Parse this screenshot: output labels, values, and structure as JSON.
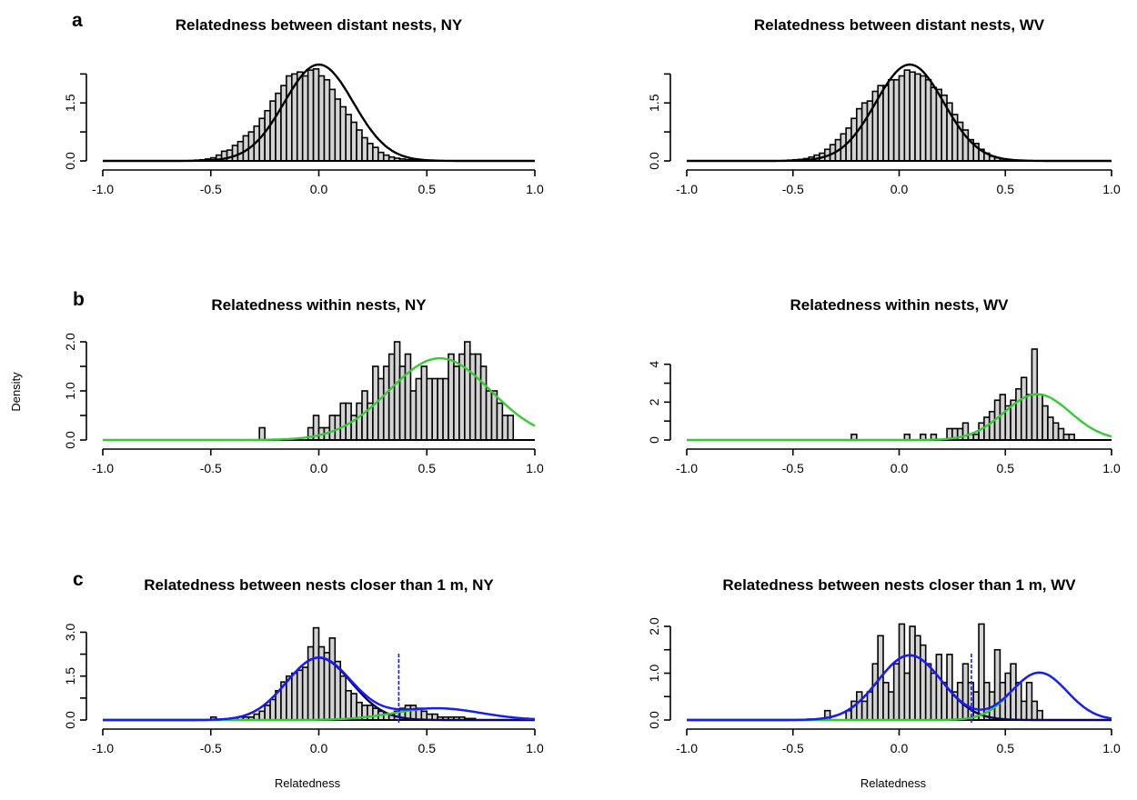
{
  "figure": {
    "ylabel": "Density",
    "xlabel": "Relatedness",
    "panel_labels": [
      "a",
      "b",
      "c"
    ]
  },
  "colors": {
    "bar_fill": "#d3d3d3",
    "bar_edge": "#000000",
    "black_curve": "#000000",
    "green_curve": "#33cc33",
    "blue_curve": "#1a1aff",
    "navy_curve": "#0a0a50",
    "threshold_line": "#1a1aff"
  },
  "chart_data": [
    {
      "type": "histogram",
      "title": "Relatedness between distant nests, NY",
      "xlim": [
        -1.0,
        1.0
      ],
      "ylim": [
        0,
        2.4
      ],
      "x_ticks": [
        "-1.0",
        "-0.5",
        "0.0",
        "0.5",
        "1.0"
      ],
      "y_ticks": [
        "0.0",
        "1.5"
      ],
      "bin_width": 0.025,
      "bins": {
        "start": -0.6,
        "densities": [
          0.01,
          0.02,
          0.03,
          0.05,
          0.08,
          0.15,
          0.25,
          0.28,
          0.4,
          0.5,
          0.65,
          0.75,
          0.9,
          1.1,
          1.3,
          1.55,
          1.75,
          1.95,
          2.2,
          2.25,
          2.3,
          2.2,
          2.35,
          2.38,
          2.2,
          2.1,
          1.85,
          1.6,
          1.4,
          1.2,
          1.0,
          0.8,
          0.6,
          0.45,
          0.35,
          0.22,
          0.15,
          0.1,
          0.07,
          0.05,
          0.03,
          0.02,
          0.01,
          0.01,
          0.005,
          0.005
        ]
      },
      "curves": [
        {
          "color": "black",
          "kind": "normal",
          "mean": 0.0,
          "sd": 0.16,
          "weight": 1.0
        }
      ]
    },
    {
      "type": "histogram",
      "title": "Relatedness between distant nests, WV",
      "xlim": [
        -1.0,
        1.0
      ],
      "ylim": [
        0,
        2.4
      ],
      "x_ticks": [
        "-1.0",
        "-0.5",
        "0.0",
        "0.5",
        "1.0"
      ],
      "y_ticks": [
        "0.0",
        "1.5"
      ],
      "bin_width": 0.025,
      "bins": {
        "start": -0.55,
        "densities": [
          0.01,
          0.02,
          0.03,
          0.04,
          0.06,
          0.1,
          0.15,
          0.2,
          0.3,
          0.42,
          0.55,
          0.7,
          0.85,
          1.1,
          1.35,
          1.5,
          1.55,
          1.8,
          1.95,
          1.95,
          2.1,
          2.1,
          2.2,
          2.35,
          2.3,
          2.25,
          2.2,
          2.1,
          1.9,
          1.85,
          1.7,
          1.5,
          1.2,
          1.0,
          0.8,
          0.55,
          0.45,
          0.3,
          0.2,
          0.12,
          0.08,
          0.05,
          0.03,
          0.02,
          0.01,
          0.01
        ]
      },
      "curves": [
        {
          "color": "black",
          "kind": "normal",
          "mean": 0.05,
          "sd": 0.16,
          "weight": 1.0
        }
      ]
    },
    {
      "type": "histogram",
      "title": "Relatedness within nests, NY",
      "xlim": [
        -1.0,
        1.0
      ],
      "ylim": [
        0,
        2.0
      ],
      "x_ticks": [
        "-1.0",
        "-0.5",
        "0.0",
        "0.5",
        "1.0"
      ],
      "y_ticks": [
        "0.0",
        "1.0",
        "2.0"
      ],
      "bin_width": 0.025,
      "bins": {
        "start": -0.275,
        "densities": [
          0.25,
          0,
          0,
          0,
          0,
          0,
          0,
          0,
          0,
          0.25,
          0.5,
          0.25,
          0.25,
          0.5,
          0.5,
          0.75,
          0.75,
          0.5,
          0.75,
          1.0,
          0.75,
          1.5,
          1.25,
          1.5,
          1.75,
          2.0,
          1.5,
          1.75,
          1.0,
          1.25,
          1.5,
          1.25,
          1.25,
          1.25,
          1.25,
          1.75,
          1.5,
          1.75,
          2.0,
          1.75,
          1.75,
          1.5,
          1.0,
          1.0,
          0.75,
          0.5,
          0.5
        ]
      },
      "curves": [
        {
          "color": "green",
          "kind": "normal",
          "mean": 0.56,
          "sd": 0.235,
          "weight": 0.98
        }
      ]
    },
    {
      "type": "histogram",
      "title": "Relatedness within nests, WV",
      "xlim": [
        -1.0,
        1.0
      ],
      "ylim": [
        0,
        4.8
      ],
      "x_ticks": [
        "-1.0",
        "-0.5",
        "0.0",
        "0.5",
        "1.0"
      ],
      "y_ticks": [
        "0",
        "2",
        "4"
      ],
      "bin_width": 0.025,
      "bins": {
        "start": -0.225,
        "densities": [
          0.3,
          0,
          0,
          0,
          0,
          0,
          0,
          0,
          0,
          0,
          0.3,
          0,
          0,
          0.3,
          0,
          0.3,
          0,
          0,
          0.6,
          0.6,
          0.6,
          0.9,
          0.3,
          0.3,
          0.9,
          1.2,
          1.5,
          2.1,
          2.4,
          1.8,
          2.1,
          2.7,
          3.3,
          2.4,
          4.8,
          2.4,
          1.8,
          1.2,
          0.9,
          0.6,
          0.3,
          0.3
        ]
      },
      "curves": [
        {
          "color": "green",
          "kind": "normal",
          "mean": 0.65,
          "sd": 0.155,
          "weight": 0.94
        }
      ]
    },
    {
      "type": "histogram",
      "title": "Relatedness between nests closer than 1 m, NY",
      "xlim": [
        -1.0,
        1.0
      ],
      "ylim": [
        0,
        3.2
      ],
      "x_ticks": [
        "-1.0",
        "-0.5",
        "0.0",
        "0.5",
        "1.0"
      ],
      "y_ticks": [
        "0.0",
        "1.5",
        "3.0"
      ],
      "bin_width": 0.025,
      "bins": {
        "start": -0.5,
        "densities": [
          0.1,
          0,
          0,
          0,
          0,
          0.1,
          0.1,
          0.1,
          0.2,
          0.3,
          0.5,
          0.7,
          1.0,
          1.3,
          1.5,
          1.6,
          1.7,
          1.8,
          2.5,
          3.15,
          2.5,
          2.3,
          2.8,
          2.0,
          1.5,
          1.0,
          0.9,
          0.6,
          0.5,
          0.5,
          0.4,
          0.3,
          0.2,
          0.2,
          0.3,
          0.4,
          0.5,
          0.5,
          0.4,
          0.3,
          0.2,
          0.2,
          0.1,
          0.1,
          0.1,
          0.1,
          0.1,
          0.05,
          0.05
        ]
      },
      "curves": [
        {
          "color": "navy",
          "kind": "normal",
          "mean": 0.0,
          "sd": 0.15,
          "weight": 0.8
        },
        {
          "color": "green",
          "kind": "normal",
          "mean": 0.55,
          "sd": 0.2,
          "weight": 0.2
        },
        {
          "color": "blue",
          "kind": "mixture"
        }
      ],
      "threshold": 0.37
    },
    {
      "type": "histogram",
      "title": "Relatedness between nests closer than 1 m, WV",
      "xlim": [
        -1.0,
        1.0
      ],
      "ylim": [
        0,
        2.0
      ],
      "x_ticks": [
        "-1.0",
        "-0.5",
        "0.0",
        "0.5",
        "1.0"
      ],
      "y_ticks": [
        "0.0",
        "1.0",
        "2.0"
      ],
      "bin_width": 0.025,
      "bins": {
        "start": -0.35,
        "densities": [
          0.2,
          0,
          0,
          0,
          0.2,
          0.4,
          0.6,
          0.4,
          0.6,
          1.2,
          1.8,
          0.8,
          0.6,
          1.2,
          2.05,
          1.0,
          2.0,
          1.8,
          1.6,
          1.2,
          1.0,
          1.4,
          0.8,
          1.4,
          0.6,
          0.8,
          1.2,
          0.8,
          0.6,
          2.05,
          0.8,
          0.6,
          1.5,
          0.8,
          1.0,
          1.2,
          0.8,
          0.4,
          0.8,
          0.4,
          0.2
        ]
      },
      "curves": [
        {
          "color": "navy",
          "kind": "normal",
          "mean": 0.05,
          "sd": 0.15,
          "weight": 0.52
        },
        {
          "color": "green",
          "kind": "normal",
          "mean": 0.66,
          "sd": 0.13,
          "weight": 0.33
        },
        {
          "color": "blue",
          "kind": "mixture"
        }
      ],
      "threshold": 0.34
    }
  ]
}
